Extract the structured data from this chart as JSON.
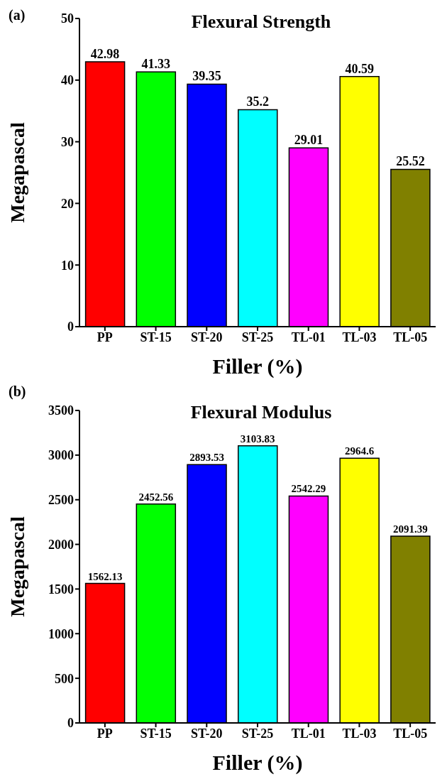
{
  "chart_data": [
    {
      "type": "bar",
      "title": "Flexural Strength",
      "xlabel": "Filler (%)",
      "ylabel": "Megapascal",
      "annotations": [
        "(a)"
      ],
      "categories": [
        "PP",
        "ST-15",
        "ST-20",
        "ST-25",
        "TL-01",
        "TL-03",
        "TL-05"
      ],
      "values": [
        42.98,
        41.33,
        39.35,
        35.2,
        29.01,
        40.59,
        25.52
      ],
      "colors": [
        "#ff0000",
        "#00ff00",
        "#0000ff",
        "#00ffff",
        "#ff00ff",
        "#ffff00",
        "#808000"
      ],
      "ylim": [
        0,
        50
      ],
      "yticks": [
        0,
        10,
        20,
        30,
        40,
        50
      ],
      "data_labels": true
    },
    {
      "type": "bar",
      "title": "Flexural Modulus",
      "xlabel": "Filler (%)",
      "ylabel": "Megapascal",
      "annotations": [
        "(b)"
      ],
      "categories": [
        "PP",
        "ST-15",
        "ST-20",
        "ST-25",
        "TL-01",
        "TL-03",
        "TL-05"
      ],
      "values": [
        1562.13,
        2452.56,
        2893.53,
        3103.83,
        2542.29,
        2964.6,
        2091.39
      ],
      "colors": [
        "#ff0000",
        "#00ff00",
        "#0000ff",
        "#00ffff",
        "#ff00ff",
        "#ffff00",
        "#808000"
      ],
      "ylim": [
        0,
        3500
      ],
      "yticks": [
        0,
        500,
        1000,
        1500,
        2000,
        2500,
        3000,
        3500
      ],
      "data_labels": true
    }
  ]
}
